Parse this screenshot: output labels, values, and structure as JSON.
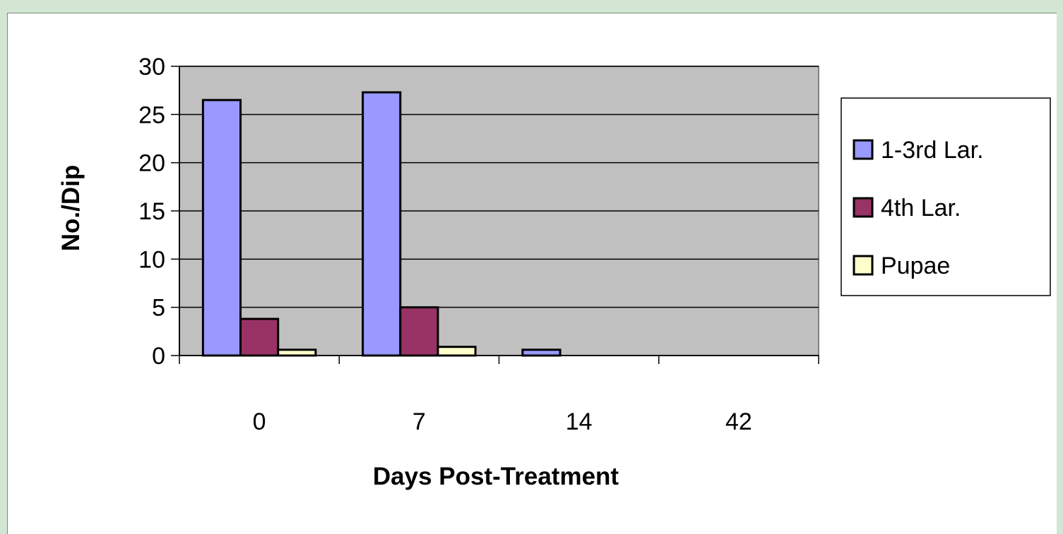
{
  "chart_data": {
    "type": "bar",
    "categories": [
      "0",
      "7",
      "14",
      "42"
    ],
    "series": [
      {
        "name": "1-3rd Lar.",
        "values": [
          26.5,
          27.3,
          0.6,
          0
        ],
        "color": "#9999ff"
      },
      {
        "name": "4th Lar.",
        "values": [
          3.8,
          5.0,
          0,
          0
        ],
        "color": "#993366"
      },
      {
        "name": "Pupae",
        "values": [
          0.6,
          0.9,
          0,
          0
        ],
        "color": "#ffffcc"
      }
    ],
    "xlabel": "Days Post-Treatment",
    "ylabel": "No./Dip",
    "ylim": [
      0,
      30
    ],
    "yticks": [
      "0",
      "5",
      "10",
      "15",
      "20",
      "25",
      "30"
    ],
    "grid": true,
    "plot_background": "#c0c0c0",
    "legend_position": "right"
  }
}
